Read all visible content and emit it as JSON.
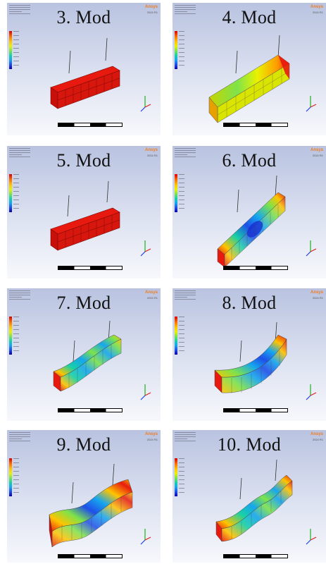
{
  "panels": [
    {
      "title": "3. Mod",
      "brand": "Ansys",
      "version": "2024 R1",
      "icon": "fea-mode-shape-render"
    },
    {
      "title": "4. Mod",
      "brand": "Ansys",
      "version": "2024 R1",
      "icon": "fea-mode-shape-render"
    },
    {
      "title": "5. Mod",
      "brand": "Ansys",
      "version": "2024 R1",
      "icon": "fea-mode-shape-render"
    },
    {
      "title": "6. Mod",
      "brand": "Ansys",
      "version": "2024 R1",
      "icon": "fea-mode-shape-render"
    },
    {
      "title": "7. Mod",
      "brand": "Ansys",
      "version": "2024 R1",
      "icon": "fea-mode-shape-render"
    },
    {
      "title": "8. Mod",
      "brand": "Ansys",
      "version": "2024 R1",
      "icon": "fea-mode-shape-render"
    },
    {
      "title": "9. Mod",
      "brand": "Ansys",
      "version": "2024 R1",
      "icon": "fea-mode-shape-render"
    },
    {
      "title": "10. Mod",
      "brand": "Ansys",
      "version": "2024 R1",
      "icon": "fea-mode-shape-render"
    }
  ],
  "colors": {
    "brand": "#ee7d22",
    "max": "#d50000",
    "min": "#0a00a8",
    "background_top": "#b9c3e0"
  }
}
